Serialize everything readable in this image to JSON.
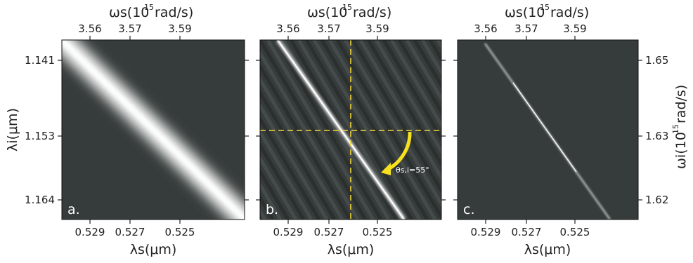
{
  "figure": {
    "panels": [
      {
        "tag": "a."
      },
      {
        "tag": "b."
      },
      {
        "tag": "c."
      }
    ],
    "top_axis_title": "ωs(10 15 rad/s)",
    "top_axis_title_main": "ωs(10",
    "top_axis_title_sup": "15",
    "top_axis_title_tail": "rad/s)",
    "bottom_axis_title": "λs(μm)",
    "left_axis_title": "λi(μm)",
    "right_axis_title_main": "ωi(10",
    "right_axis_title_sup": "15",
    "right_axis_title_tail": "rad/s)",
    "angle_annotation": "θs,i=55°",
    "colors": {
      "background": "#363c3b",
      "ridge": "#ffffff",
      "guide_lines": "#f4d43a",
      "arrow": "#f7e11f"
    }
  },
  "chart_data": {
    "type": "heatmap",
    "panels": [
      {
        "tag": "a.",
        "x_ticks_bottom": [
          "0.529",
          "0.527",
          "0.525"
        ],
        "x_ticks_top": [
          "3.56",
          "3.57",
          "3.59"
        ],
        "y_ticks_left": [
          "1.141",
          "1.153",
          "1.164"
        ],
        "ridge": {
          "from": [
            0,
            0
          ],
          "to": [
            1,
            1
          ],
          "width": "broad"
        }
      },
      {
        "tag": "b.",
        "x_ticks_bottom": [
          "0.529",
          "0.527",
          "0.525"
        ],
        "x_ticks_top": [
          "3.56",
          "3.57",
          "3.59"
        ],
        "ridge": {
          "from": [
            0.1,
            0
          ],
          "to": [
            0.8,
            1
          ],
          "width": "narrow"
        },
        "fringes": true,
        "guide_lines": true,
        "annotation": "θs,i=55°"
      },
      {
        "tag": "c.",
        "x_ticks_bottom": [
          "0.529",
          "0.527",
          "0.525"
        ],
        "x_ticks_top": [
          "3.56",
          "3.57",
          "3.59"
        ],
        "y_ticks_right": [
          "1.65",
          "1.63",
          "1.62"
        ],
        "ridge": {
          "from": [
            0.15,
            0.02
          ],
          "to": [
            0.83,
            1
          ],
          "width": "thin"
        }
      }
    ],
    "xlabel_bottom": "λs(μm)",
    "xlabel_top": "ωs(10 15 rad/s)",
    "ylabel_left": "λi(μm)",
    "ylabel_right": "ωi(10 15 rad/s)"
  }
}
